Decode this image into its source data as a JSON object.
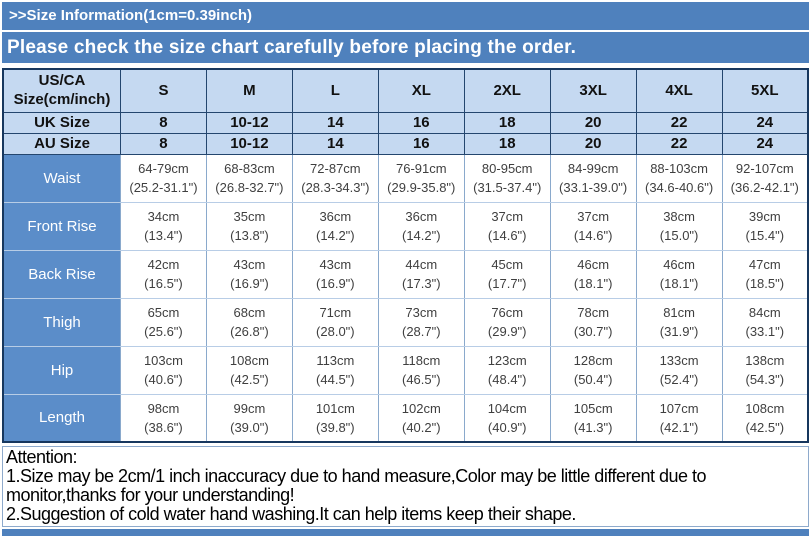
{
  "banner": {
    "title": ">>Size Information(1cm=0.39inch)",
    "subtitle": "Please check the size chart carefully before placing the order."
  },
  "table": {
    "corner": {
      "line1": "US/CA",
      "line2": "Size(cm/inch)"
    },
    "sizes": [
      "S",
      "M",
      "L",
      "XL",
      "2XL",
      "3XL",
      "4XL",
      "5XL"
    ],
    "uk_row": {
      "label": "UK Size",
      "values": [
        "8",
        "10-12",
        "14",
        "16",
        "18",
        "20",
        "22",
        "24"
      ]
    },
    "au_row": {
      "label": "AU Size",
      "values": [
        "8",
        "10-12",
        "14",
        "16",
        "18",
        "20",
        "22",
        "24"
      ]
    },
    "measure_rows": [
      {
        "label": "Waist",
        "cm": [
          "64-79cm",
          "68-83cm",
          "72-87cm",
          "76-91cm",
          "80-95cm",
          "84-99cm",
          "88-103cm",
          "92-107cm"
        ],
        "inch": [
          "(25.2-31.1\")",
          "(26.8-32.7\")",
          "(28.3-34.3\")",
          "(29.9-35.8\")",
          "(31.5-37.4\")",
          "(33.1-39.0\")",
          "(34.6-40.6\")",
          "(36.2-42.1\")"
        ]
      },
      {
        "label": "Front Rise",
        "cm": [
          "34cm",
          "35cm",
          "36cm",
          "36cm",
          "37cm",
          "37cm",
          "38cm",
          "39cm"
        ],
        "inch": [
          "(13.4\")",
          "(13.8\")",
          "(14.2\")",
          "(14.2\")",
          "(14.6\")",
          "(14.6\")",
          "(15.0\")",
          "(15.4\")"
        ]
      },
      {
        "label": "Back Rise",
        "cm": [
          "42cm",
          "43cm",
          "43cm",
          "44cm",
          "45cm",
          "46cm",
          "46cm",
          "47cm"
        ],
        "inch": [
          "(16.5\")",
          "(16.9\")",
          "(16.9\")",
          "(17.3\")",
          "(17.7\")",
          "(18.1\")",
          "(18.1\")",
          "(18.5\")"
        ]
      },
      {
        "label": "Thigh",
        "cm": [
          "65cm",
          "68cm",
          "71cm",
          "73cm",
          "76cm",
          "78cm",
          "81cm",
          "84cm"
        ],
        "inch": [
          "(25.6\")",
          "(26.8\")",
          "(28.0\")",
          "(28.7\")",
          "(29.9\")",
          "(30.7\")",
          "(31.9\")",
          "(33.1\")"
        ]
      },
      {
        "label": "Hip",
        "cm": [
          "103cm",
          "108cm",
          "113cm",
          "118cm",
          "123cm",
          "128cm",
          "133cm",
          "138cm"
        ],
        "inch": [
          "(40.6\")",
          "(42.5\")",
          "(44.5\")",
          "(46.5\")",
          "(48.4\")",
          "(50.4\")",
          "(52.4\")",
          "(54.3\")"
        ]
      },
      {
        "label": "Length",
        "cm": [
          "98cm",
          "99cm",
          "101cm",
          "102cm",
          "104cm",
          "105cm",
          "107cm",
          "108cm"
        ],
        "inch": [
          "(38.6\")",
          "(39.0\")",
          "(39.8\")",
          "(40.2\")",
          "(40.9\")",
          "(41.3\")",
          "(42.1\")",
          "(42.5\")"
        ]
      }
    ]
  },
  "attention": {
    "title": "Attention:",
    "items": [
      "1.Size may be 2cm/1 inch inaccuracy due to hand measure,Color may be little different due to monitor,thanks for your understanding!",
      "2.Suggestion of cold water hand washing.It can help items keep their shape."
    ]
  },
  "colors": {
    "banner_blue": "#4f81bd",
    "header_light_blue": "#c5d9f1",
    "row_label_blue": "#5b8dc9",
    "table_border_dark": "#17375e",
    "cell_border_light": "#b8cde6",
    "data_text": "#3f3f3f"
  }
}
